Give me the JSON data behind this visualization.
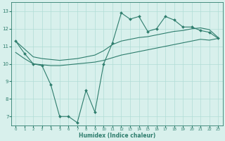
{
  "line1_x": [
    0,
    1,
    2,
    3,
    4,
    5,
    6,
    7,
    8,
    9,
    10,
    11,
    12,
    13,
    14,
    15,
    16,
    17,
    18,
    19,
    20,
    21,
    22,
    23
  ],
  "line1_y": [
    11.3,
    10.6,
    10.0,
    9.9,
    8.8,
    7.0,
    7.0,
    6.65,
    8.5,
    7.25,
    10.0,
    11.2,
    12.9,
    12.55,
    12.7,
    11.85,
    12.0,
    12.7,
    12.5,
    12.1,
    12.1,
    11.9,
    11.8,
    11.45
  ],
  "line2_x": [
    0,
    1,
    2,
    3,
    4,
    5,
    6,
    7,
    8,
    9,
    10,
    11,
    12,
    13,
    14,
    15,
    16,
    17,
    18,
    19,
    20,
    21,
    22,
    23
  ],
  "line2_y": [
    11.3,
    10.85,
    10.4,
    10.3,
    10.25,
    10.2,
    10.25,
    10.3,
    10.4,
    10.5,
    10.75,
    11.1,
    11.3,
    11.4,
    11.5,
    11.55,
    11.65,
    11.75,
    11.85,
    11.9,
    12.0,
    12.05,
    11.95,
    11.5
  ],
  "line3_x": [
    0,
    1,
    2,
    3,
    4,
    5,
    6,
    7,
    8,
    9,
    10,
    11,
    12,
    13,
    14,
    15,
    16,
    17,
    18,
    19,
    20,
    21,
    22,
    23
  ],
  "line3_y": [
    10.65,
    10.3,
    10.0,
    9.95,
    9.9,
    9.9,
    9.95,
    10.0,
    10.05,
    10.1,
    10.2,
    10.35,
    10.5,
    10.6,
    10.7,
    10.8,
    10.9,
    11.0,
    11.1,
    11.2,
    11.3,
    11.4,
    11.35,
    11.45
  ],
  "color": "#2e7d6d",
  "bg_color": "#d8f0ec",
  "grid_color": "#b0ddd6",
  "xlabel": "Humidex (Indice chaleur)",
  "ylim": [
    6.5,
    13.5
  ],
  "xlim": [
    -0.5,
    23.5
  ],
  "yticks": [
    7,
    8,
    9,
    10,
    11,
    12,
    13
  ],
  "xticks": [
    0,
    1,
    2,
    3,
    4,
    5,
    6,
    7,
    8,
    9,
    10,
    11,
    12,
    13,
    14,
    15,
    16,
    17,
    18,
    19,
    20,
    21,
    22,
    23
  ]
}
